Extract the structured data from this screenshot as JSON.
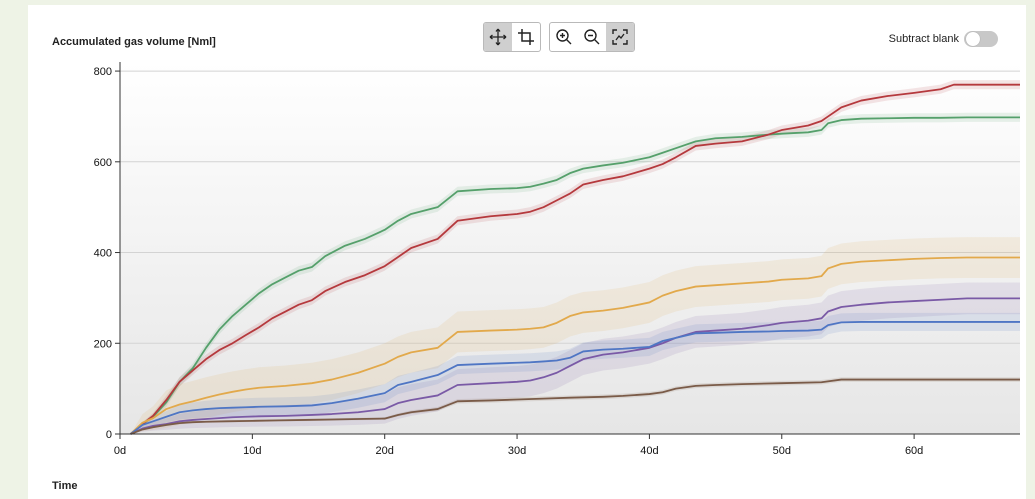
{
  "toolbar": {
    "buttons": [
      {
        "name": "pan-icon",
        "active": true
      },
      {
        "name": "crop-icon",
        "active": false
      },
      {
        "name": "zoom-in-icon",
        "active": false
      },
      {
        "name": "zoom-out-icon",
        "active": false
      },
      {
        "name": "autoscale-icon",
        "active": true
      }
    ]
  },
  "controls": {
    "subtract_blank_label": "Subtract blank",
    "subtract_blank_on": false
  },
  "colors": {
    "background": "#eef3e6",
    "grid": "#d3d3d3",
    "green": "#55a06b",
    "red": "#b5393d",
    "yellow": "#e2a94b",
    "purple": "#7a5aa6",
    "blue": "#4f76c4",
    "brown": "#7a5b48"
  },
  "chart_data": {
    "type": "line",
    "ylabel": "Accumulated gas volume [Nml]",
    "xlabel": "Time",
    "xlim": [
      0,
      68
    ],
    "ylim": [
      0,
      820
    ],
    "xticks": [
      0,
      10,
      20,
      30,
      40,
      50,
      60
    ],
    "xtick_labels": [
      "0d",
      "10d",
      "20d",
      "30d",
      "40d",
      "50d",
      "60d"
    ],
    "yticks": [
      0,
      200,
      400,
      600,
      800
    ],
    "ytick_labels": [
      "0",
      "200",
      "400",
      "600",
      "800"
    ],
    "grid": true,
    "series": [
      {
        "color": "#55a06b",
        "band": 10,
        "x": [
          0.8,
          1.7,
          2.5,
          3.5,
          4.5,
          5.5,
          6.5,
          7.5,
          8.5,
          9.5,
          10.5,
          11.5,
          12.5,
          13.5,
          14.5,
          15.5,
          17,
          18.5,
          20,
          21,
          22,
          24,
          25.5,
          28,
          30,
          31,
          32,
          33,
          34,
          35,
          36.5,
          38,
          40,
          41,
          42,
          43.5,
          45,
          47,
          49,
          50,
          52,
          53,
          53.5,
          54.5,
          56,
          58,
          60,
          62,
          64,
          66,
          68
        ],
        "y": [
          0,
          22,
          38,
          70,
          115,
          145,
          190,
          230,
          260,
          285,
          310,
          330,
          345,
          360,
          368,
          392,
          415,
          430,
          450,
          470,
          485,
          500,
          535,
          540,
          542,
          545,
          552,
          560,
          575,
          585,
          592,
          598,
          610,
          620,
          630,
          645,
          652,
          655,
          660,
          662,
          665,
          670,
          685,
          692,
          695,
          696,
          697,
          697,
          698,
          698,
          698
        ]
      },
      {
        "color": "#b5393d",
        "band": 10,
        "x": [
          0.8,
          1.7,
          2.5,
          3.5,
          4.5,
          5.5,
          6.5,
          7.5,
          8.5,
          9.5,
          10.5,
          11.5,
          12.5,
          13.5,
          14.5,
          15.5,
          17,
          18.5,
          20,
          21,
          22,
          24,
          25.5,
          28,
          30,
          31,
          32,
          33,
          34,
          35,
          36.5,
          38,
          40,
          41,
          42,
          43.5,
          45,
          47,
          49,
          50,
          52,
          53,
          53.5,
          54.5,
          56,
          58,
          60,
          62,
          63,
          64,
          66,
          68
        ],
        "y": [
          0,
          22,
          40,
          75,
          115,
          140,
          165,
          185,
          200,
          218,
          235,
          255,
          270,
          285,
          295,
          315,
          335,
          350,
          370,
          390,
          410,
          430,
          470,
          480,
          485,
          490,
          500,
          515,
          530,
          550,
          560,
          568,
          585,
          595,
          610,
          635,
          640,
          645,
          660,
          670,
          680,
          690,
          700,
          720,
          735,
          745,
          752,
          760,
          770,
          770,
          770,
          770
        ]
      },
      {
        "color": "#e2a94b",
        "band": 45,
        "x": [
          0.8,
          1.7,
          2.5,
          3.5,
          4.5,
          5.5,
          6.5,
          7.5,
          8.5,
          9.5,
          10.5,
          12.5,
          14.5,
          16,
          18,
          20,
          21,
          22,
          24,
          25.5,
          28,
          30,
          31,
          32,
          33,
          34,
          35,
          36.5,
          38,
          40,
          41,
          42,
          43.5,
          45,
          47,
          49,
          50,
          52,
          53,
          53.5,
          54.5,
          56,
          58,
          60,
          62,
          64,
          66,
          68
        ],
        "y": [
          0,
          25,
          35,
          55,
          65,
          72,
          80,
          87,
          93,
          98,
          102,
          106,
          112,
          120,
          135,
          155,
          170,
          180,
          190,
          225,
          228,
          230,
          232,
          235,
          245,
          260,
          268,
          272,
          278,
          290,
          305,
          315,
          325,
          328,
          332,
          336,
          340,
          343,
          348,
          365,
          375,
          380,
          383,
          386,
          388,
          389,
          389,
          389
        ]
      },
      {
        "color": "#7a5aa6",
        "band": 35,
        "x": [
          0.8,
          1.7,
          2.5,
          3.5,
          4.5,
          5.5,
          6.5,
          7.5,
          8.5,
          9.5,
          10.5,
          12.5,
          14.5,
          16,
          18,
          20,
          21,
          22,
          24,
          25.5,
          28,
          30,
          31,
          32,
          33,
          34,
          35,
          36.5,
          38,
          40,
          41,
          42,
          43.5,
          45,
          47,
          49,
          50,
          52,
          53,
          53.5,
          54.5,
          56,
          58,
          60,
          62,
          64,
          66,
          68
        ],
        "y": [
          0,
          12,
          18,
          22,
          28,
          31,
          33,
          35,
          37,
          38,
          39,
          40,
          42,
          44,
          48,
          55,
          68,
          75,
          85,
          108,
          112,
          115,
          118,
          125,
          135,
          150,
          165,
          175,
          180,
          190,
          200,
          212,
          225,
          228,
          232,
          240,
          245,
          250,
          255,
          270,
          280,
          285,
          290,
          293,
          296,
          299,
          299,
          299
        ]
      },
      {
        "color": "#4f76c4",
        "band": 20,
        "x": [
          0.8,
          1.7,
          2.5,
          3.5,
          4.5,
          5.5,
          6.5,
          7.5,
          8.5,
          9.5,
          10.5,
          12.5,
          14.5,
          16,
          18,
          20,
          21,
          22,
          24,
          25.5,
          28,
          30,
          31,
          32,
          33,
          34,
          35,
          36.5,
          38,
          40,
          41,
          42,
          43.5,
          45,
          47,
          49,
          50,
          52,
          53,
          53.5,
          54.5,
          56,
          58,
          60,
          62,
          64,
          66,
          68
        ],
        "y": [
          0,
          20,
          28,
          38,
          48,
          52,
          55,
          57,
          58,
          59,
          60,
          61,
          63,
          68,
          78,
          90,
          108,
          115,
          130,
          152,
          155,
          157,
          158,
          160,
          162,
          168,
          182,
          186,
          188,
          192,
          205,
          212,
          222,
          223,
          225,
          226,
          227,
          228,
          230,
          240,
          246,
          247,
          247,
          247,
          247,
          247,
          247,
          247
        ]
      },
      {
        "color": "#7a5b48",
        "band": 5,
        "x": [
          0.8,
          1.7,
          2.5,
          3.5,
          4.5,
          5.5,
          6.5,
          8,
          10,
          12,
          14,
          16,
          18,
          20,
          21,
          22,
          24,
          25.5,
          28,
          30,
          32,
          34,
          36.5,
          38,
          40,
          41,
          42,
          43.5,
          45,
          47,
          50,
          53,
          54.5,
          56,
          60,
          64,
          68
        ],
        "y": [
          0,
          10,
          15,
          20,
          24,
          26,
          27,
          28,
          29,
          30,
          31,
          32,
          33,
          34,
          42,
          48,
          55,
          72,
          74,
          76,
          78,
          80,
          82,
          84,
          88,
          92,
          100,
          106,
          108,
          110,
          112,
          114,
          120,
          120,
          120,
          120,
          120
        ]
      }
    ]
  }
}
